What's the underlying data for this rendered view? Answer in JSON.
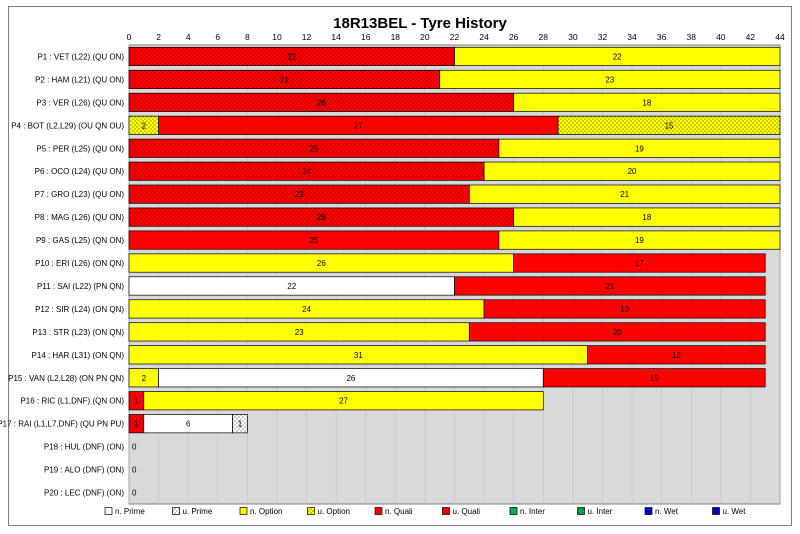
{
  "chart_data": {
    "type": "bar",
    "orientation": "horizontal",
    "stacked": true,
    "title": "18R13BEL - Tyre History",
    "xlim": [
      0,
      44
    ],
    "x_ticks": [
      0,
      2,
      4,
      6,
      8,
      10,
      12,
      14,
      16,
      18,
      20,
      22,
      24,
      26,
      28,
      30,
      32,
      34,
      36,
      38,
      40,
      42,
      44
    ],
    "grid": "vertical",
    "legend_position": "bottom",
    "colors": {
      "n. Prime": "#ffffff",
      "u. Prime": "#ffffff",
      "n. Option": "#ffff00",
      "u. Option": "#ffff00",
      "n. Quali": "#ff0000",
      "u. Quali": "#ff0000",
      "n. Inter": "#00b050",
      "u. Inter": "#00b050",
      "n. Wet": "#0000cc",
      "u. Wet": "#0000cc"
    },
    "legend": [
      "n. Prime",
      "u. Prime",
      "n. Option",
      "u. Option",
      "n. Quali",
      "u. Quali",
      "n. Inter",
      "u. Inter",
      "n. Wet",
      "u. Wet"
    ],
    "rows": [
      {
        "label": "P1 : VET (L22) (QU ON)",
        "stints": [
          {
            "compound": "u. Quali",
            "laps": 22
          },
          {
            "compound": "n. Option",
            "laps": 22
          }
        ]
      },
      {
        "label": "P2 : HAM (L21) (QU ON)",
        "stints": [
          {
            "compound": "u. Quali",
            "laps": 21
          },
          {
            "compound": "n. Option",
            "laps": 23
          }
        ]
      },
      {
        "label": "P3 : VER (L26) (QU ON)",
        "stints": [
          {
            "compound": "u. Quali",
            "laps": 26
          },
          {
            "compound": "n. Option",
            "laps": 18
          }
        ]
      },
      {
        "label": "P4 : BOT (L2,L29) (OU QN OU)",
        "stints": [
          {
            "compound": "u. Option",
            "laps": 2
          },
          {
            "compound": "n. Quali",
            "laps": 27
          },
          {
            "compound": "u. Option",
            "laps": 15
          }
        ]
      },
      {
        "label": "P5 : PER (L25) (QU ON)",
        "stints": [
          {
            "compound": "u. Quali",
            "laps": 25
          },
          {
            "compound": "n. Option",
            "laps": 19
          }
        ]
      },
      {
        "label": "P6 : OCO (L24) (QU ON)",
        "stints": [
          {
            "compound": "u. Quali",
            "laps": 24
          },
          {
            "compound": "n. Option",
            "laps": 20
          }
        ]
      },
      {
        "label": "P7 : GRO (L23) (QU ON)",
        "stints": [
          {
            "compound": "u. Quali",
            "laps": 23
          },
          {
            "compound": "n. Option",
            "laps": 21
          }
        ]
      },
      {
        "label": "P8 : MAG (L26) (QU ON)",
        "stints": [
          {
            "compound": "u. Quali",
            "laps": 26
          },
          {
            "compound": "n. Option",
            "laps": 18
          }
        ]
      },
      {
        "label": "P9 : GAS (L25) (QN ON)",
        "stints": [
          {
            "compound": "n. Quali",
            "laps": 25
          },
          {
            "compound": "n. Option",
            "laps": 19
          }
        ]
      },
      {
        "label": "P10 : ERI (L26) (ON QN)",
        "stints": [
          {
            "compound": "n. Option",
            "laps": 26
          },
          {
            "compound": "n. Quali",
            "laps": 17
          }
        ]
      },
      {
        "label": "P11 : SAI (L22) (PN QN)",
        "stints": [
          {
            "compound": "n. Prime",
            "laps": 22
          },
          {
            "compound": "n. Quali",
            "laps": 21
          }
        ]
      },
      {
        "label": "P12 : SIR (L24) (ON QN)",
        "stints": [
          {
            "compound": "n. Option",
            "laps": 24
          },
          {
            "compound": "n. Quali",
            "laps": 19
          }
        ]
      },
      {
        "label": "P13 : STR (L23) (ON QN)",
        "stints": [
          {
            "compound": "n. Option",
            "laps": 23
          },
          {
            "compound": "n. Quali",
            "laps": 20
          }
        ]
      },
      {
        "label": "P14 : HAR (L31) (ON QN)",
        "stints": [
          {
            "compound": "n. Option",
            "laps": 31
          },
          {
            "compound": "n. Quali",
            "laps": 12
          }
        ]
      },
      {
        "label": "P15 : VAN (L2,L28) (ON PN QN)",
        "stints": [
          {
            "compound": "n. Option",
            "laps": 2
          },
          {
            "compound": "n. Prime",
            "laps": 26
          },
          {
            "compound": "n. Quali",
            "laps": 15
          }
        ]
      },
      {
        "label": "P16 : RIC (L1,DNF) (QN ON)",
        "stints": [
          {
            "compound": "n. Quali",
            "laps": 1
          },
          {
            "compound": "n. Option",
            "laps": 27
          }
        ]
      },
      {
        "label": "P17 : RAI (L1,L7,DNF) (QU PN PU)",
        "stints": [
          {
            "compound": "u. Quali",
            "laps": 1
          },
          {
            "compound": "n. Prime",
            "laps": 6
          },
          {
            "compound": "u. Prime",
            "laps": 1
          }
        ]
      },
      {
        "label": "P18 : HUL (DNF) (ON)",
        "stints": [
          {
            "compound": "n. Option",
            "laps": 0
          }
        ]
      },
      {
        "label": "P19 : ALO (DNF) (ON)",
        "stints": [
          {
            "compound": "n. Option",
            "laps": 0
          }
        ]
      },
      {
        "label": "P20 : LEC (DNF) (ON)",
        "stints": [
          {
            "compound": "n. Option",
            "laps": 0
          }
        ]
      }
    ]
  }
}
